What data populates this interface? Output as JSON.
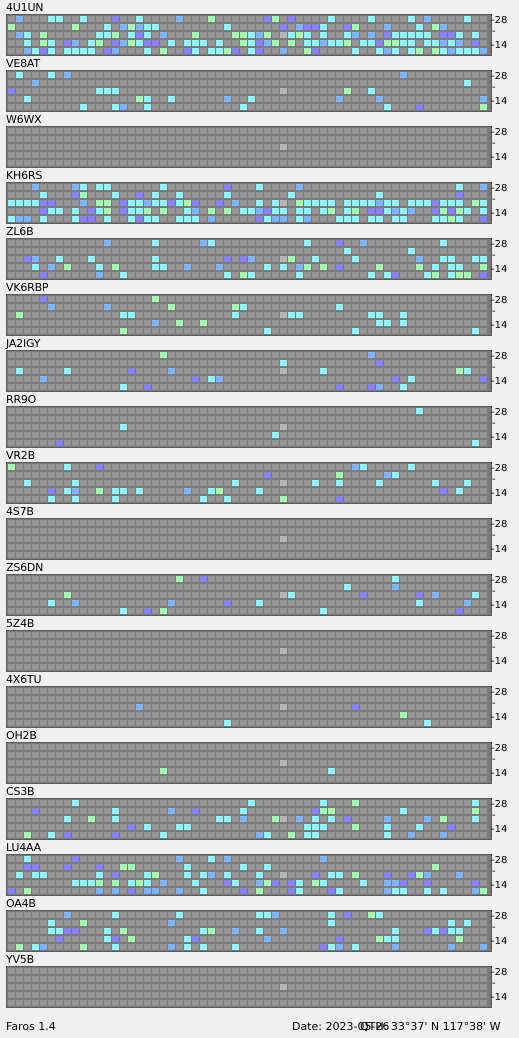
{
  "app": {
    "version_label": "Faros 1.4"
  },
  "status": {
    "date_label": "Date: 2023-05-26",
    "qth_label": "QTH: 33°37' N  117°38' W"
  },
  "y_axis": {
    "top_label": "28",
    "bottom_label": "14"
  },
  "colors": {
    "grid_bg": "#7a7a7a",
    "cell_empty": "#959595",
    "cell_marker": "#b5b5b5",
    "cyan": "#8ff5ff",
    "green": "#a8ffb0",
    "blue": "#7fb2ff",
    "violet": "#8a7fff"
  },
  "stations": [
    {
      "name": "4U1UN",
      "active": 0.55
    },
    {
      "name": "VE8AT",
      "active": 0.12
    },
    {
      "name": "W6WX",
      "active": 0.0
    },
    {
      "name": "KH6RS",
      "active": 0.55
    },
    {
      "name": "ZL6B",
      "active": 0.22
    },
    {
      "name": "VK6RBP",
      "active": 0.08
    },
    {
      "name": "JA2IGY",
      "active": 0.12
    },
    {
      "name": "RR9O",
      "active": 0.02
    },
    {
      "name": "VR2B",
      "active": 0.12
    },
    {
      "name": "4S7B",
      "active": 0.0
    },
    {
      "name": "ZS6DN",
      "active": 0.07
    },
    {
      "name": "5Z4B",
      "active": 0.0
    },
    {
      "name": "4X6TU",
      "active": 0.01
    },
    {
      "name": "OH2B",
      "active": 0.01
    },
    {
      "name": "CS3B",
      "active": 0.2
    },
    {
      "name": "LU4AA",
      "active": 0.3
    },
    {
      "name": "OA4B",
      "active": 0.25
    },
    {
      "name": "YV5B",
      "active": 0.0
    }
  ]
}
